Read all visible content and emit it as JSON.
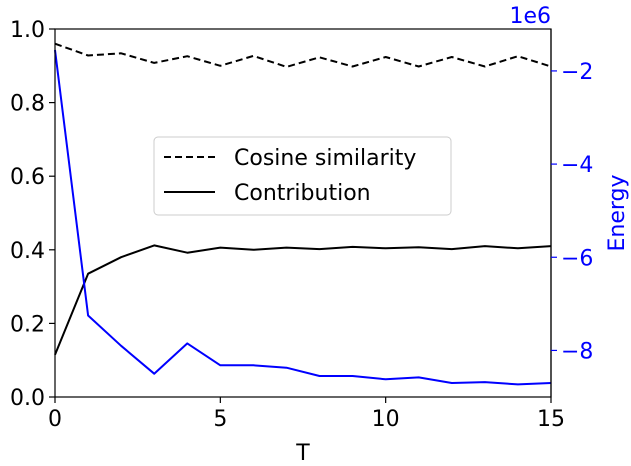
{
  "chart_data": {
    "type": "line",
    "xlabel": "T",
    "xlim": [
      0,
      15
    ],
    "x_ticks": [
      "0",
      "5",
      "10",
      "15"
    ],
    "x_tick_values": [
      0,
      5,
      10,
      15
    ],
    "left_axis": {
      "ylim": [
        0.0,
        1.0
      ],
      "ticks": [
        "0.0",
        "0.2",
        "0.4",
        "0.6",
        "0.8",
        "1.0"
      ],
      "tick_values": [
        0.0,
        0.2,
        0.4,
        0.6,
        0.8,
        1.0
      ],
      "color": "#000000"
    },
    "right_axis": {
      "label": "Energy",
      "offset_text": "1e6",
      "ylim": [
        -9.0,
        -1.1
      ],
      "ticks": [
        "−2",
        "−4",
        "−6",
        "−8"
      ],
      "tick_values": [
        -2,
        -4,
        -6,
        -8
      ],
      "color": "#0000ff"
    },
    "x": [
      0,
      1,
      2,
      3,
      4,
      5,
      6,
      7,
      8,
      9,
      10,
      11,
      12,
      13,
      14,
      15
    ],
    "series": [
      {
        "name": "Cosine similarity",
        "axis": "left",
        "style": "dashed",
        "color": "#000000",
        "values": [
          0.96,
          0.928,
          0.934,
          0.908,
          0.926,
          0.9,
          0.927,
          0.897,
          0.923,
          0.898,
          0.924,
          0.898,
          0.924,
          0.898,
          0.926,
          0.898
        ]
      },
      {
        "name": "Contribution",
        "axis": "left",
        "style": "solid",
        "color": "#000000",
        "values": [
          0.115,
          0.335,
          0.38,
          0.412,
          0.392,
          0.406,
          0.4,
          0.406,
          0.402,
          0.408,
          0.404,
          0.407,
          0.402,
          0.41,
          0.404,
          0.41
        ]
      },
      {
        "name": "",
        "axis": "right",
        "style": "solid",
        "color": "#0000ff",
        "values": [
          -1.55,
          -7.25,
          -7.9,
          -8.5,
          -7.85,
          -8.32,
          -8.32,
          -8.37,
          -8.55,
          -8.55,
          -8.62,
          -8.58,
          -8.7,
          -8.68,
          -8.73,
          -8.7
        ]
      }
    ],
    "legend": {
      "placement": "center",
      "entries": [
        "Cosine similarity",
        "Contribution"
      ]
    }
  }
}
